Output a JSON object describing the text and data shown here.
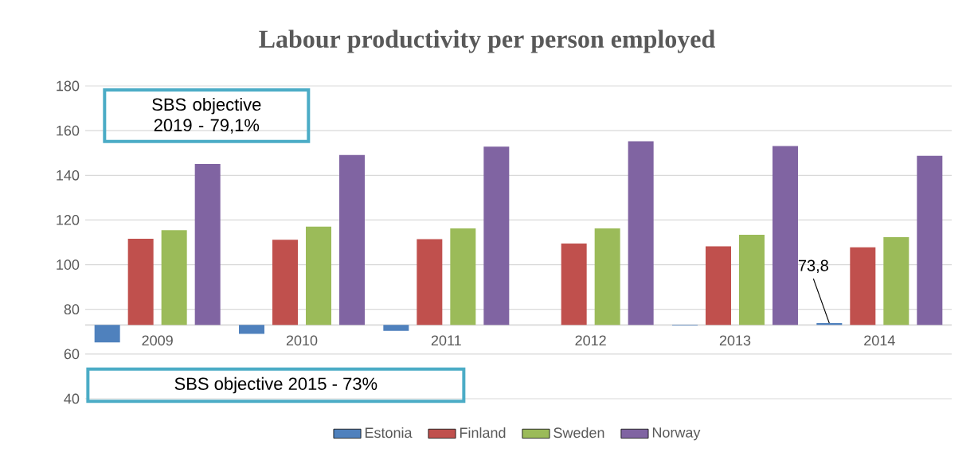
{
  "chart_data": {
    "type": "bar",
    "title": "Labour productivity per person employed",
    "categories": [
      "2009",
      "2010",
      "2011",
      "2012",
      "2013",
      "2014"
    ],
    "series": [
      {
        "name": "Estonia",
        "color": "#4f81bd",
        "base": [
          73,
          73,
          73,
          null,
          73,
          73
        ],
        "values": [
          -7.8,
          -4.0,
          -2.6,
          null,
          -0.2,
          0.8
        ],
        "value_labels": [
          null,
          null,
          null,
          null,
          null,
          "73,8"
        ]
      },
      {
        "name": "Finland",
        "color": "#c0504d",
        "base": [
          73,
          73,
          73,
          73,
          73,
          73
        ],
        "values": [
          38.6,
          38.2,
          38.4,
          36.5,
          35.2,
          34.8
        ]
      },
      {
        "name": "Sweden",
        "color": "#9bbb59",
        "base": [
          73,
          73,
          73,
          73,
          73,
          73
        ],
        "values": [
          42.4,
          44.0,
          43.2,
          43.2,
          40.4,
          39.3
        ]
      },
      {
        "name": "Norway",
        "color": "#8064a2",
        "base": [
          73,
          73,
          73,
          73,
          73,
          73
        ],
        "values": [
          72.1,
          76.1,
          79.8,
          82.2,
          80.1,
          75.7
        ]
      }
    ],
    "ylim": [
      40,
      180
    ],
    "yticks": [
      40,
      60,
      80,
      100,
      120,
      140,
      160,
      180
    ],
    "grid": "y",
    "legend": "bottom",
    "annotations": [
      "SBS objective 2019 - 79,1%",
      "SBS objective 2015 - 73%"
    ]
  }
}
